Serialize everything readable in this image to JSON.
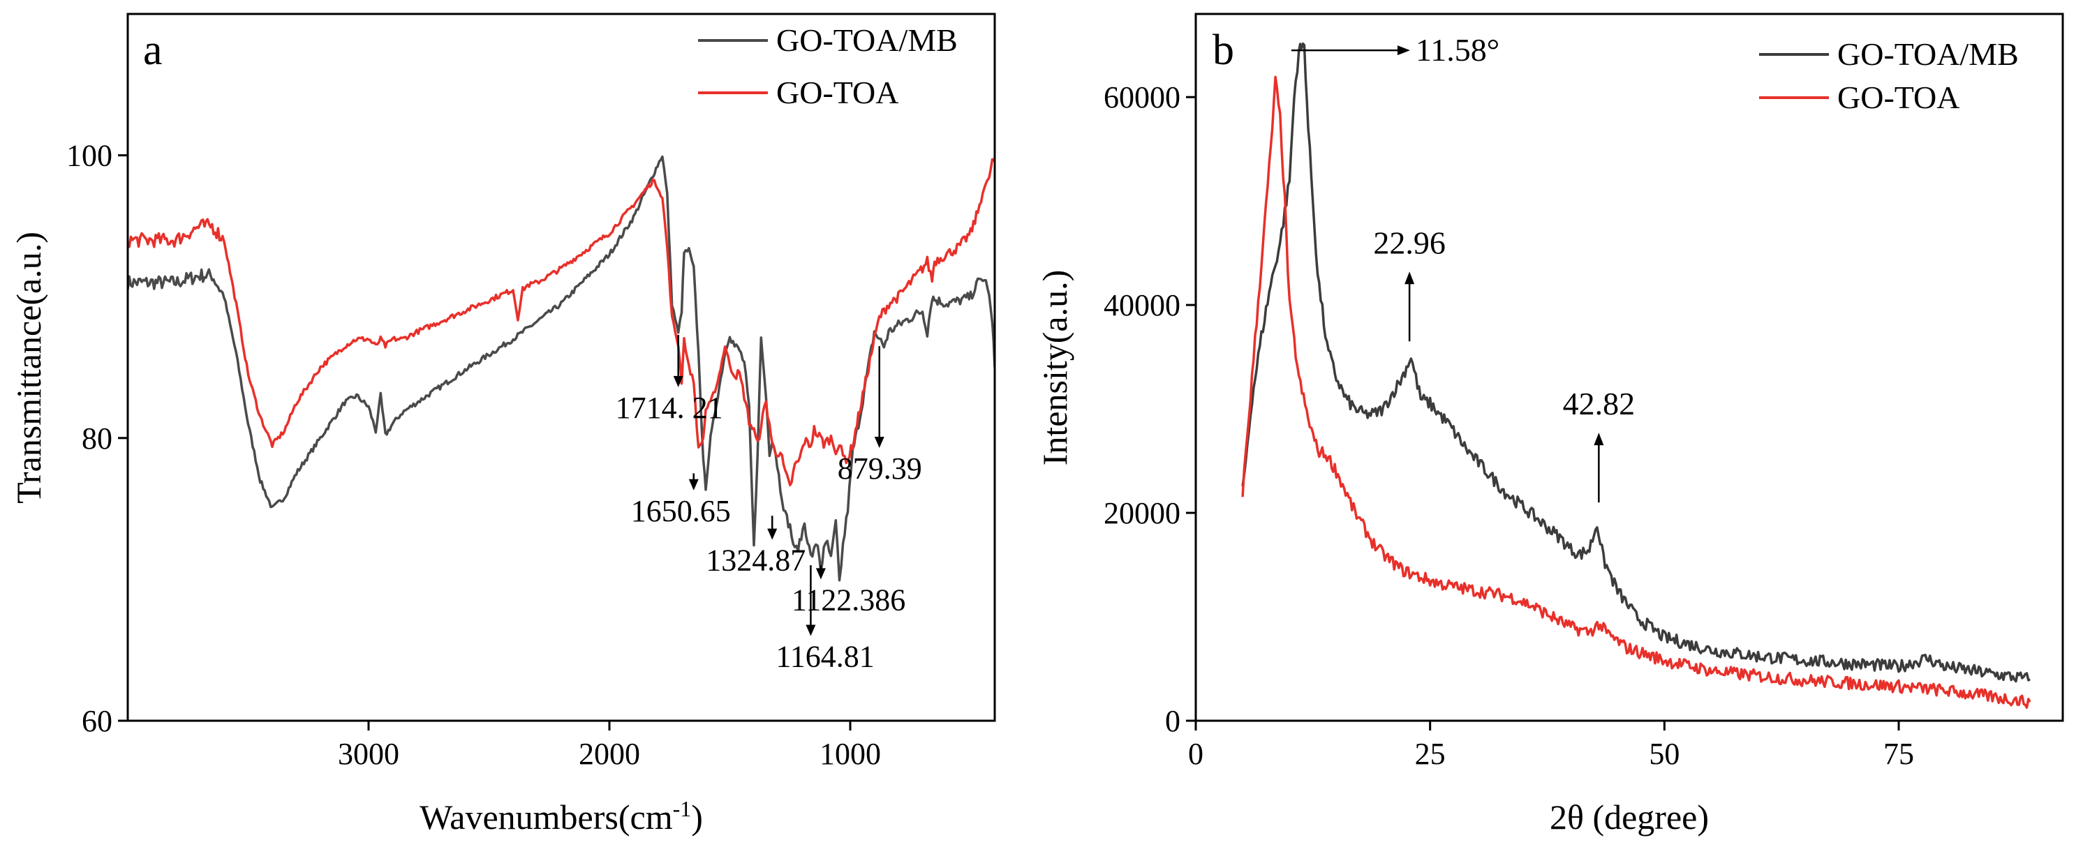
{
  "chart_data": [
    {
      "panel_label": "a",
      "type": "line",
      "xlabel": "Wavenumbers(cm",
      "xlabel_sup": "-1",
      "xlabel_close": ")",
      "ylabel": "Transmittance(a.u.)",
      "xlim": [
        4000,
        400
      ],
      "ylim": [
        60,
        110
      ],
      "xticks": [
        3000,
        2000,
        1000
      ],
      "yticks": [
        60,
        80,
        100
      ],
      "legend_position": "top-right",
      "series": [
        {
          "name": "GO-TOA/MB",
          "color": "#4a4a4a",
          "x": [
            4000,
            3800,
            3700,
            3650,
            3600,
            3550,
            3500,
            3450,
            3400,
            3350,
            3300,
            3200,
            3100,
            3050,
            3000,
            2970,
            2950,
            2930,
            2900,
            2860,
            2800,
            2600,
            2400,
            2200,
            2000,
            1900,
            1800,
            1780,
            1760,
            1740,
            1714,
            1700,
            1690,
            1670,
            1650,
            1630,
            1610,
            1600,
            1580,
            1550,
            1520,
            1500,
            1480,
            1460,
            1440,
            1420,
            1400,
            1385,
            1370,
            1350,
            1335,
            1324,
            1310,
            1290,
            1270,
            1250,
            1230,
            1210,
            1190,
            1164,
            1150,
            1135,
            1122,
            1110,
            1095,
            1080,
            1060,
            1045,
            1030,
            1010,
            990,
            960,
            930,
            900,
            879,
            860,
            840,
            800,
            750,
            700,
            680,
            660,
            650,
            600,
            550,
            500,
            470,
            450,
            430,
            410,
            400
          ],
          "y": [
            91,
            91,
            91.5,
            91.5,
            90,
            86,
            81,
            77,
            75,
            75.8,
            77.5,
            80,
            82.5,
            83,
            82.2,
            80.5,
            83,
            80.2,
            81,
            81.8,
            82.5,
            84.8,
            87,
            89.5,
            93,
            95.6,
            99.3,
            100,
            97.2,
            89.5,
            87.4,
            89,
            93.1,
            93.3,
            92,
            86,
            78.3,
            76.5,
            80,
            83,
            86,
            87.3,
            86.5,
            86.2,
            85.3,
            82,
            72.2,
            79,
            87,
            83,
            79,
            80,
            79,
            76.5,
            74.6,
            73.7,
            72,
            72.5,
            74,
            71.6,
            72,
            72.5,
            70.7,
            72,
            72.6,
            71.4,
            74,
            69.8,
            72.4,
            75,
            79,
            81.5,
            84.5,
            87.5,
            87,
            86.5,
            87.5,
            88,
            88.5,
            89,
            87.5,
            90,
            89.8,
            89.5,
            89.7,
            90,
            91,
            91.3,
            90.8,
            88.1,
            85
          ]
        },
        {
          "name": "GO-TOA",
          "color": "#e8302a",
          "x": [
            4000,
            3800,
            3700,
            3650,
            3600,
            3550,
            3500,
            3450,
            3400,
            3350,
            3300,
            3200,
            3100,
            3050,
            3000,
            2970,
            2950,
            2930,
            2900,
            2860,
            2800,
            2600,
            2400,
            2380,
            2360,
            2340,
            2300,
            2200,
            2000,
            1900,
            1820,
            1800,
            1780,
            1760,
            1740,
            1714,
            1700,
            1690,
            1670,
            1650,
            1630,
            1610,
            1600,
            1580,
            1550,
            1520,
            1500,
            1480,
            1460,
            1440,
            1420,
            1400,
            1385,
            1370,
            1350,
            1335,
            1324,
            1310,
            1290,
            1270,
            1250,
            1230,
            1210,
            1190,
            1164,
            1150,
            1135,
            1122,
            1110,
            1095,
            1080,
            1060,
            1045,
            1030,
            1010,
            990,
            960,
            930,
            900,
            879,
            860,
            840,
            800,
            750,
            700,
            680,
            660,
            650,
            600,
            550,
            500,
            470,
            450,
            430,
            410,
            400
          ],
          "y": [
            94,
            94,
            95,
            95,
            94,
            89.5,
            84.5,
            81.5,
            79.5,
            80.5,
            82.5,
            85,
            86.5,
            87,
            87,
            86.5,
            87,
            86.5,
            87,
            87,
            87.5,
            89,
            90.5,
            88.5,
            90.5,
            90.8,
            91,
            92,
            94.5,
            96.5,
            98.2,
            97.8,
            97,
            93.5,
            88.5,
            86.6,
            84,
            87,
            85,
            84,
            79.2,
            80,
            82,
            82.5,
            84,
            86.5,
            85.2,
            84.5,
            84.5,
            83,
            81.2,
            80.5,
            79.5,
            81,
            82.5,
            81,
            79.5,
            79,
            79,
            77.5,
            76.5,
            78,
            78.5,
            79.8,
            79.5,
            80.6,
            80.2,
            80,
            79.6,
            79.8,
            80,
            79.2,
            79.5,
            78.7,
            78.5,
            79.5,
            82,
            84.5,
            87,
            88.5,
            89,
            89.5,
            90,
            91,
            92,
            92.5,
            91.2,
            92.5,
            93,
            93.5,
            94.5,
            96,
            97.5,
            98,
            99.5,
            99.8
          ]
        }
      ],
      "annotations": [
        {
          "label": "1714. 21",
          "x": 1714,
          "y": 87.3
        },
        {
          "label": "1650.65",
          "x": 1650,
          "y": 77.5
        },
        {
          "label": "1324.87",
          "x": 1324,
          "y": 74.5
        },
        {
          "label": "1122.386",
          "x": 1122,
          "y": 71
        },
        {
          "label": "1164.81",
          "x": 1164,
          "y": 71
        },
        {
          "label": "879.39",
          "x": 879,
          "y": 86.5
        }
      ]
    },
    {
      "panel_label": "b",
      "type": "line",
      "xlabel": "2θ (degree)",
      "ylabel": "Intensity(a.u.)",
      "xlim": [
        0,
        92.5
      ],
      "ylim": [
        0,
        68000
      ],
      "xticks": [
        0,
        25,
        50,
        75
      ],
      "yticks": [
        0,
        20000,
        40000,
        60000
      ],
      "legend_position": "top-right",
      "series": [
        {
          "name": "GO-TOA/MB",
          "color": "#3c3c3c",
          "x": [
            5,
            6,
            7,
            8,
            9,
            10,
            10.5,
            11,
            11.58,
            12,
            13,
            14,
            15,
            16,
            17,
            18,
            19,
            20,
            21,
            22,
            22.96,
            24,
            25,
            27,
            29,
            31,
            33,
            35,
            37,
            39,
            40,
            41,
            42,
            42.82,
            43.5,
            45,
            47,
            50,
            55,
            60,
            65,
            70,
            75,
            78,
            80,
            85,
            89
          ],
          "y": [
            22000,
            31000,
            37000,
            42000,
            46000,
            52000,
            60000,
            64500,
            65000,
            57000,
            43000,
            36000,
            33000,
            31000,
            30000,
            29500,
            29500,
            30000,
            31500,
            33000,
            35000,
            31000,
            30500,
            28500,
            26000,
            24000,
            22000,
            20500,
            19000,
            17500,
            16500,
            16000,
            16500,
            19000,
            15500,
            12500,
            10000,
            8000,
            6800,
            6200,
            5800,
            5500,
            5200,
            6000,
            5200,
            4500,
            4000
          ]
        },
        {
          "name": "GO-TOA",
          "color": "#e8302a",
          "x": [
            5,
            6,
            7,
            8,
            8.5,
            9,
            9.5,
            10,
            11,
            12,
            13,
            14,
            15,
            16,
            17,
            18,
            19,
            20,
            22,
            24,
            26,
            28,
            30,
            32,
            34,
            36,
            38,
            40,
            42,
            43,
            44,
            46,
            50,
            55,
            60,
            65,
            70,
            75,
            80,
            85,
            89
          ],
          "y": [
            22000,
            33000,
            44000,
            55000,
            61500,
            58000,
            50000,
            40000,
            33000,
            29000,
            26000,
            25500,
            24000,
            22000,
            20000,
            18500,
            17000,
            16000,
            14500,
            13800,
            13200,
            12800,
            12500,
            12200,
            11800,
            11000,
            10000,
            9000,
            8500,
            9300,
            8300,
            7000,
            5800,
            4800,
            4300,
            3900,
            3600,
            3300,
            2900,
            2300,
            1800
          ]
        }
      ],
      "annotations": [
        {
          "label": "11.58°",
          "x": 10.2,
          "y": 64500,
          "style": "right-arrow"
        },
        {
          "label": "22.96",
          "x": 22.8,
          "y": 36500,
          "style": "up-arrow"
        },
        {
          "label": "42.82",
          "x": 43.0,
          "y": 21000,
          "style": "up-arrow"
        }
      ]
    }
  ]
}
